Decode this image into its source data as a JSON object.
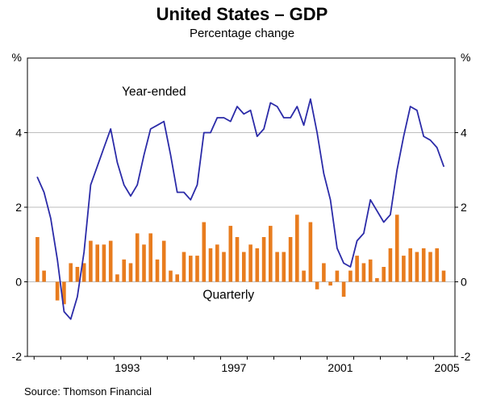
{
  "chart_data": {
    "type": "line+bar",
    "title": "United States – GDP",
    "subtitle": "Percentage change",
    "source": "Source: Thomson Financial",
    "unit_label": "%",
    "ylim": [
      -2,
      6
    ],
    "yticks": [
      -2,
      0,
      2,
      4
    ],
    "xlim": [
      1989.75,
      2005.8
    ],
    "x_start": 1990.0,
    "x_step": 0.25,
    "grid": "horizontal",
    "legend_position": "inline-annotations",
    "xtick_labels": [
      {
        "label": "1993",
        "x": 1993.5
      },
      {
        "label": "1997",
        "x": 1997.5
      },
      {
        "label": "2001",
        "x": 2001.5
      },
      {
        "label": "2005",
        "x": 2005.5
      }
    ],
    "year_tick_marks": [
      1990,
      1991,
      1992,
      1993,
      1994,
      1995,
      1996,
      1997,
      1998,
      1999,
      2000,
      2001,
      2002,
      2003,
      2004,
      2005
    ],
    "colors": {
      "line": "#2B2BA8",
      "bar": "#E87C1E",
      "grid": "#BDBDBD",
      "axis": "#000000",
      "text": "#000000"
    },
    "series": [
      {
        "name": "Year-ended",
        "type": "line",
        "color_key": "line",
        "values": [
          2.8,
          2.4,
          1.7,
          0.6,
          -0.8,
          -1.0,
          -0.4,
          0.8,
          2.6,
          3.1,
          3.6,
          4.1,
          3.2,
          2.6,
          2.3,
          2.6,
          3.4,
          4.1,
          4.2,
          4.3,
          3.4,
          2.4,
          2.4,
          2.2,
          2.6,
          4.0,
          4.0,
          4.4,
          4.4,
          4.3,
          4.7,
          4.5,
          4.6,
          3.9,
          4.1,
          4.8,
          4.7,
          4.4,
          4.4,
          4.7,
          4.2,
          4.9,
          4.0,
          2.9,
          2.2,
          0.9,
          0.5,
          0.4,
          1.1,
          1.3,
          2.2,
          1.9,
          1.6,
          1.8,
          3.0,
          3.9,
          4.7,
          4.6,
          3.9,
          3.8,
          3.6,
          3.1
        ]
      },
      {
        "name": "Quarterly",
        "type": "bar",
        "color_key": "bar",
        "values": [
          1.2,
          0.3,
          0.0,
          -0.5,
          -0.6,
          0.5,
          0.4,
          0.5,
          1.1,
          1.0,
          1.0,
          1.1,
          0.2,
          0.6,
          0.5,
          1.3,
          1.0,
          1.3,
          0.6,
          1.1,
          0.3,
          0.2,
          0.8,
          0.7,
          0.7,
          1.6,
          0.9,
          1.0,
          0.8,
          1.5,
          1.2,
          0.8,
          1.0,
          0.9,
          1.2,
          1.5,
          0.8,
          0.8,
          1.2,
          1.8,
          0.3,
          1.6,
          -0.2,
          0.5,
          -0.1,
          0.3,
          -0.4,
          0.3,
          0.7,
          0.5,
          0.6,
          0.1,
          0.4,
          0.9,
          1.8,
          0.7,
          0.9,
          0.8,
          0.9,
          0.8,
          0.9,
          0.3
        ]
      }
    ],
    "annotations": [
      {
        "id": "year-ended",
        "text": "Year-ended",
        "x": 1994.5,
        "y": 5.0,
        "color_key": "line",
        "anchor": "middle"
      },
      {
        "id": "quarterly",
        "text": "Quarterly",
        "x": 1997.3,
        "y": -0.45,
        "color_key": "bar",
        "anchor": "middle"
      }
    ]
  }
}
